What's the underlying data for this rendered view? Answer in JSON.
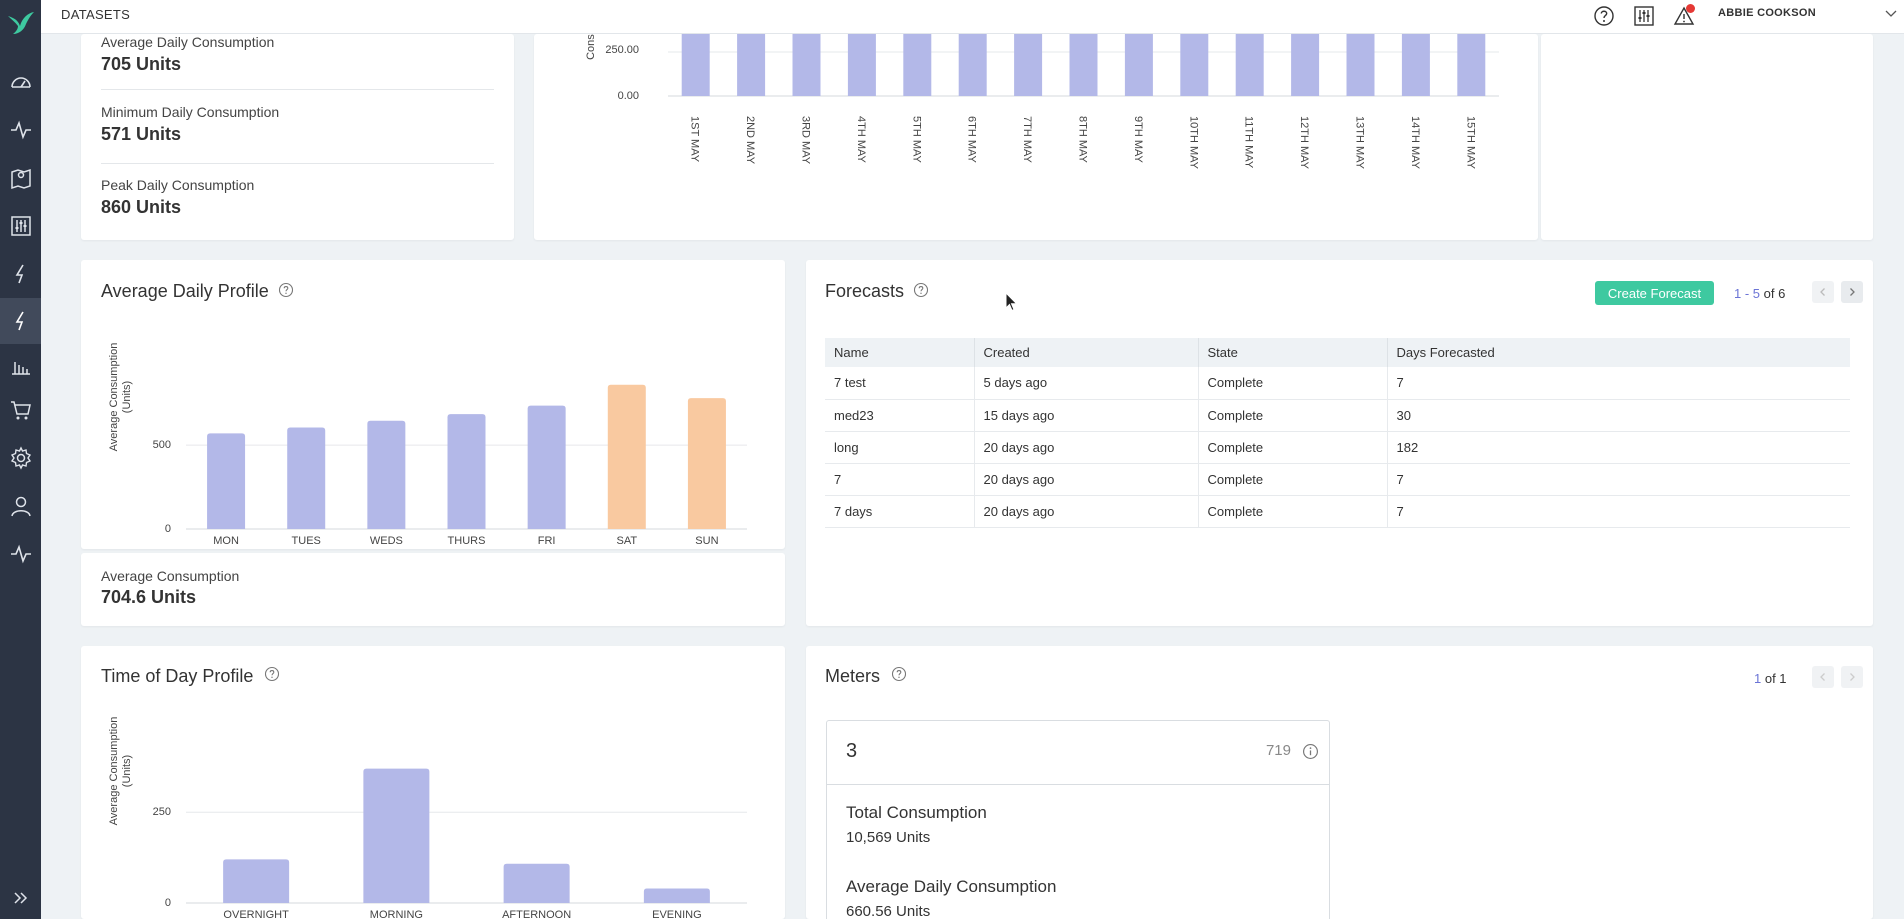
{
  "topbar": {
    "title": "DATASETS",
    "username": "ABBIE COOKSON"
  },
  "sidebar": {
    "icons": [
      "bird-logo-icon",
      "dashboard-gauge-icon",
      "activity-pulse-icon",
      "map-pin-icon",
      "sliders-icon",
      "lightning-icon",
      "lightning-icon",
      "bar-chart-icon",
      "shopping-cart-icon",
      "gear-icon",
      "user-icon",
      "activity-pulse-icon",
      "double-chevron-right-icon"
    ]
  },
  "summary_stats": [
    {
      "label": "Average Daily Consumption",
      "value": "705 Units"
    },
    {
      "label": "Minimum Daily Consumption",
      "value": "571 Units"
    },
    {
      "label": "Peak Daily Consumption",
      "value": "860 Units"
    }
  ],
  "daily_chart": {
    "ylabel": "Consu",
    "ticks": [
      "250.00",
      "0.00"
    ],
    "categories": [
      "1ST MAY",
      "2ND MAY",
      "3RD MAY",
      "4TH MAY",
      "5TH MAY",
      "6TH MAY",
      "7TH MAY",
      "8TH MAY",
      "9TH MAY",
      "10TH MAY",
      "11TH MAY",
      "12TH MAY",
      "13TH MAY",
      "14TH MAY",
      "15TH MAY"
    ]
  },
  "avg_daily_profile": {
    "title": "Average Daily Profile",
    "footer_label": "Average Consumption",
    "footer_value": "704.6 Units"
  },
  "time_of_day": {
    "title": "Time of Day Profile"
  },
  "forecasts": {
    "title": "Forecasts",
    "create_label": "Create Forecast",
    "pager": {
      "range_start": "1",
      "range_sep": " - ",
      "range_end": "5",
      "of": " of 6"
    },
    "columns": [
      "Name",
      "Created",
      "State",
      "Days Forecasted"
    ],
    "rows": [
      [
        "7 test",
        "5 days ago",
        "Complete",
        "7"
      ],
      [
        "med23",
        "15 days ago",
        "Complete",
        "30"
      ],
      [
        "long",
        "20 days ago",
        "Complete",
        "182"
      ],
      [
        "7",
        "20 days ago",
        "Complete",
        "7"
      ],
      [
        "7 days",
        "20 days ago",
        "Complete",
        "7"
      ]
    ]
  },
  "meters": {
    "title": "Meters",
    "pager": {
      "current": "1",
      "of": " of 1"
    },
    "card": {
      "name": "3",
      "id": "719",
      "total_label": "Total Consumption",
      "total_value": "10,569 Units",
      "avg_label": "Average Daily Consumption",
      "avg_value": "660.56 Units"
    }
  },
  "chart_data": [
    {
      "type": "bar",
      "ylabel": "Average Consumption (Units)",
      "categories": [
        "MON",
        "TUES",
        "WEDS",
        "THURS",
        "FRI",
        "SAT",
        "SUN"
      ],
      "values": [
        570,
        605,
        645,
        685,
        735,
        860,
        780
      ],
      "yticks": [
        0,
        500
      ],
      "ylim": [
        0,
        900
      ],
      "colors": [
        "#b3b8e8",
        "#b3b8e8",
        "#b3b8e8",
        "#b3b8e8",
        "#b3b8e8",
        "#f9c9a0",
        "#f9c9a0"
      ],
      "grid": true
    },
    {
      "type": "bar",
      "ylabel": "Average Consumption (Units)",
      "categories": [
        "OVERNIGHT",
        "MORNING",
        "AFTERNOON",
        "EVENING"
      ],
      "values": [
        120,
        370,
        108,
        40
      ],
      "yticks": [
        0,
        250
      ],
      "ylim": [
        0,
        380
      ],
      "colors": [
        "#b3b8e8",
        "#b3b8e8",
        "#b3b8e8",
        "#b3b8e8"
      ],
      "grid": true
    }
  ],
  "colors": {
    "accent": "#3ec9a0",
    "bar": "#b3b8e8",
    "weekend_bar": "#f9c9a0",
    "sidebar": "#2c3444",
    "pager_highlight": "#6b74d6"
  }
}
